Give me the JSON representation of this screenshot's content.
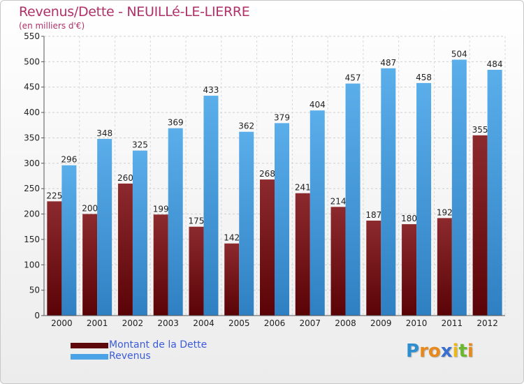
{
  "title": "Revenus/Dette - NEUILLé-LE-LIERRE",
  "subtitle": "(en milliers d'€)",
  "chart_data": {
    "type": "bar",
    "categories": [
      "2000",
      "2001",
      "2002",
      "2003",
      "2004",
      "2005",
      "2006",
      "2007",
      "2008",
      "2009",
      "2010",
      "2011",
      "2012"
    ],
    "series": [
      {
        "name": "Montant de la Dette",
        "color": "#7a1418",
        "values": [
          225,
          200,
          260,
          199,
          175,
          142,
          268,
          241,
          214,
          187,
          180,
          192,
          355
        ]
      },
      {
        "name": "Revenus",
        "color": "#4aa3e6",
        "values": [
          296,
          348,
          325,
          369,
          433,
          362,
          379,
          404,
          457,
          487,
          458,
          504,
          484
        ]
      }
    ],
    "ylim": [
      0,
      550
    ],
    "yticks": [
      0,
      50,
      100,
      150,
      200,
      250,
      300,
      350,
      400,
      450,
      500,
      550
    ],
    "grid": true,
    "legend_position": "bottom-left"
  },
  "legend": {
    "items": [
      {
        "label": "Montant de la Dette",
        "color": "#6a0f12"
      },
      {
        "label": "Revenus",
        "color": "#4aa3e6"
      }
    ]
  },
  "logo": {
    "letters": [
      {
        "ch": "P",
        "color": "#2e8fd0"
      },
      {
        "ch": "r",
        "color": "#e8891c"
      },
      {
        "ch": "o",
        "color": "#e8891c"
      },
      {
        "ch": "x",
        "color": "#3a6fd0"
      },
      {
        "ch": "i",
        "color": "#e8b81c"
      },
      {
        "ch": "t",
        "color": "#6bb82e"
      },
      {
        "ch": "i",
        "color": "#e8891c"
      }
    ]
  }
}
